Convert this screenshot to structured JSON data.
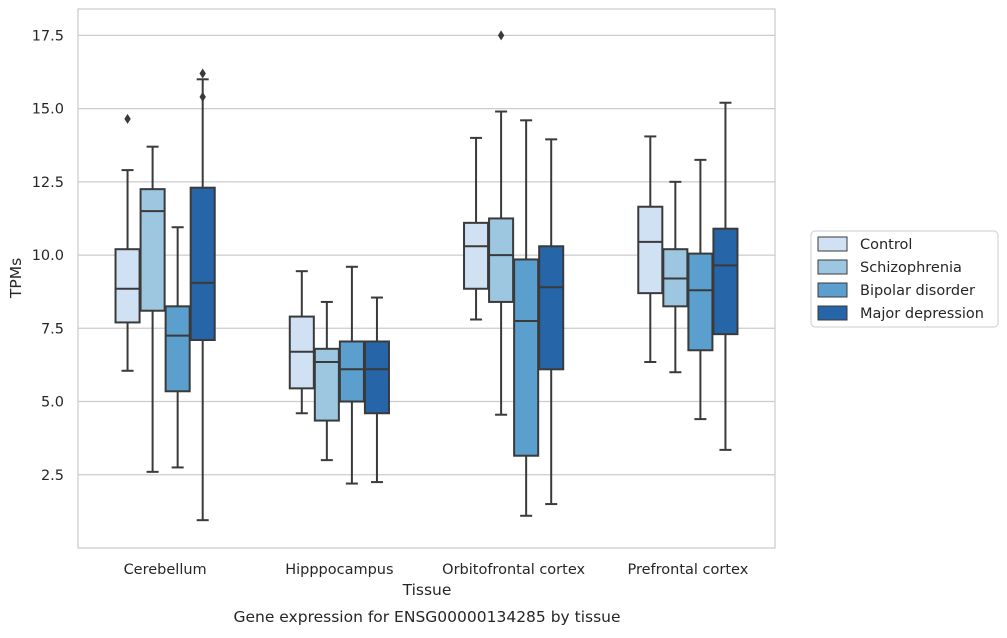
{
  "caption": "Gene expression for ENSG00000134285 by tissue",
  "chart_data": {
    "type": "box",
    "title": "",
    "xlabel": "Tissue",
    "ylabel": "TPMs",
    "ylim": [
      0,
      18.4
    ],
    "yticks": [
      2.5,
      5.0,
      7.5,
      10.0,
      12.5,
      15.0,
      17.5
    ],
    "ytick_labels": [
      "2.5",
      "5.0",
      "7.5",
      "10.0",
      "12.5",
      "15.0",
      "17.5"
    ],
    "grid": "horizontal",
    "legend_position": "right",
    "categories": [
      "Cerebellum",
      "Hipppocampus",
      "Orbitofrontal cortex",
      "Prefrontal cortex"
    ],
    "series": [
      {
        "name": "Control",
        "color": "#cfe1f2",
        "boxes": [
          {
            "whisker_low": 6.05,
            "q1": 7.7,
            "median": 8.85,
            "q3": 10.2,
            "whisker_high": 12.9,
            "outliers": [
              14.65
            ]
          },
          {
            "whisker_low": 4.6,
            "q1": 5.45,
            "median": 6.7,
            "q3": 7.9,
            "whisker_high": 9.45,
            "outliers": []
          },
          {
            "whisker_low": 7.8,
            "q1": 8.85,
            "median": 10.3,
            "q3": 11.1,
            "whisker_high": 14.0,
            "outliers": []
          },
          {
            "whisker_low": 6.35,
            "q1": 8.7,
            "median": 10.45,
            "q3": 11.65,
            "whisker_high": 14.05,
            "outliers": []
          }
        ]
      },
      {
        "name": "Schizophrenia",
        "color": "#9dc6e0",
        "boxes": [
          {
            "whisker_low": 2.6,
            "q1": 8.1,
            "median": 11.5,
            "q3": 12.25,
            "whisker_high": 13.7,
            "outliers": []
          },
          {
            "whisker_low": 3.0,
            "q1": 4.35,
            "median": 6.35,
            "q3": 6.8,
            "whisker_high": 8.4,
            "outliers": []
          },
          {
            "whisker_low": 4.55,
            "q1": 8.4,
            "median": 10.0,
            "q3": 11.25,
            "whisker_high": 14.9,
            "outliers": [
              17.5
            ]
          },
          {
            "whisker_low": 6.0,
            "q1": 8.25,
            "median": 9.2,
            "q3": 10.2,
            "whisker_high": 12.5,
            "outliers": []
          }
        ]
      },
      {
        "name": "Bipolar disorder",
        "color": "#5a9fcd",
        "boxes": [
          {
            "whisker_low": 2.75,
            "q1": 5.35,
            "median": 7.25,
            "q3": 8.25,
            "whisker_high": 10.95,
            "outliers": []
          },
          {
            "whisker_low": 2.2,
            "q1": 5.0,
            "median": 6.1,
            "q3": 7.05,
            "whisker_high": 9.6,
            "outliers": []
          },
          {
            "whisker_low": 1.1,
            "q1": 3.15,
            "median": 7.75,
            "q3": 9.85,
            "whisker_high": 14.6,
            "outliers": []
          },
          {
            "whisker_low": 4.4,
            "q1": 6.75,
            "median": 8.8,
            "q3": 10.05,
            "whisker_high": 13.25,
            "outliers": []
          }
        ]
      },
      {
        "name": "Major depression",
        "color": "#2665a7",
        "boxes": [
          {
            "whisker_low": 0.95,
            "q1": 7.1,
            "median": 9.05,
            "q3": 12.3,
            "whisker_high": 16.0,
            "outliers": [
              16.2,
              15.4
            ]
          },
          {
            "whisker_low": 2.25,
            "q1": 4.6,
            "median": 6.1,
            "q3": 7.05,
            "whisker_high": 8.55,
            "outliers": []
          },
          {
            "whisker_low": 1.5,
            "q1": 6.1,
            "median": 8.9,
            "q3": 10.3,
            "whisker_high": 13.95,
            "outliers": []
          },
          {
            "whisker_low": 3.35,
            "q1": 7.3,
            "median": 9.65,
            "q3": 10.9,
            "whisker_high": 15.2,
            "outliers": []
          }
        ]
      }
    ]
  }
}
